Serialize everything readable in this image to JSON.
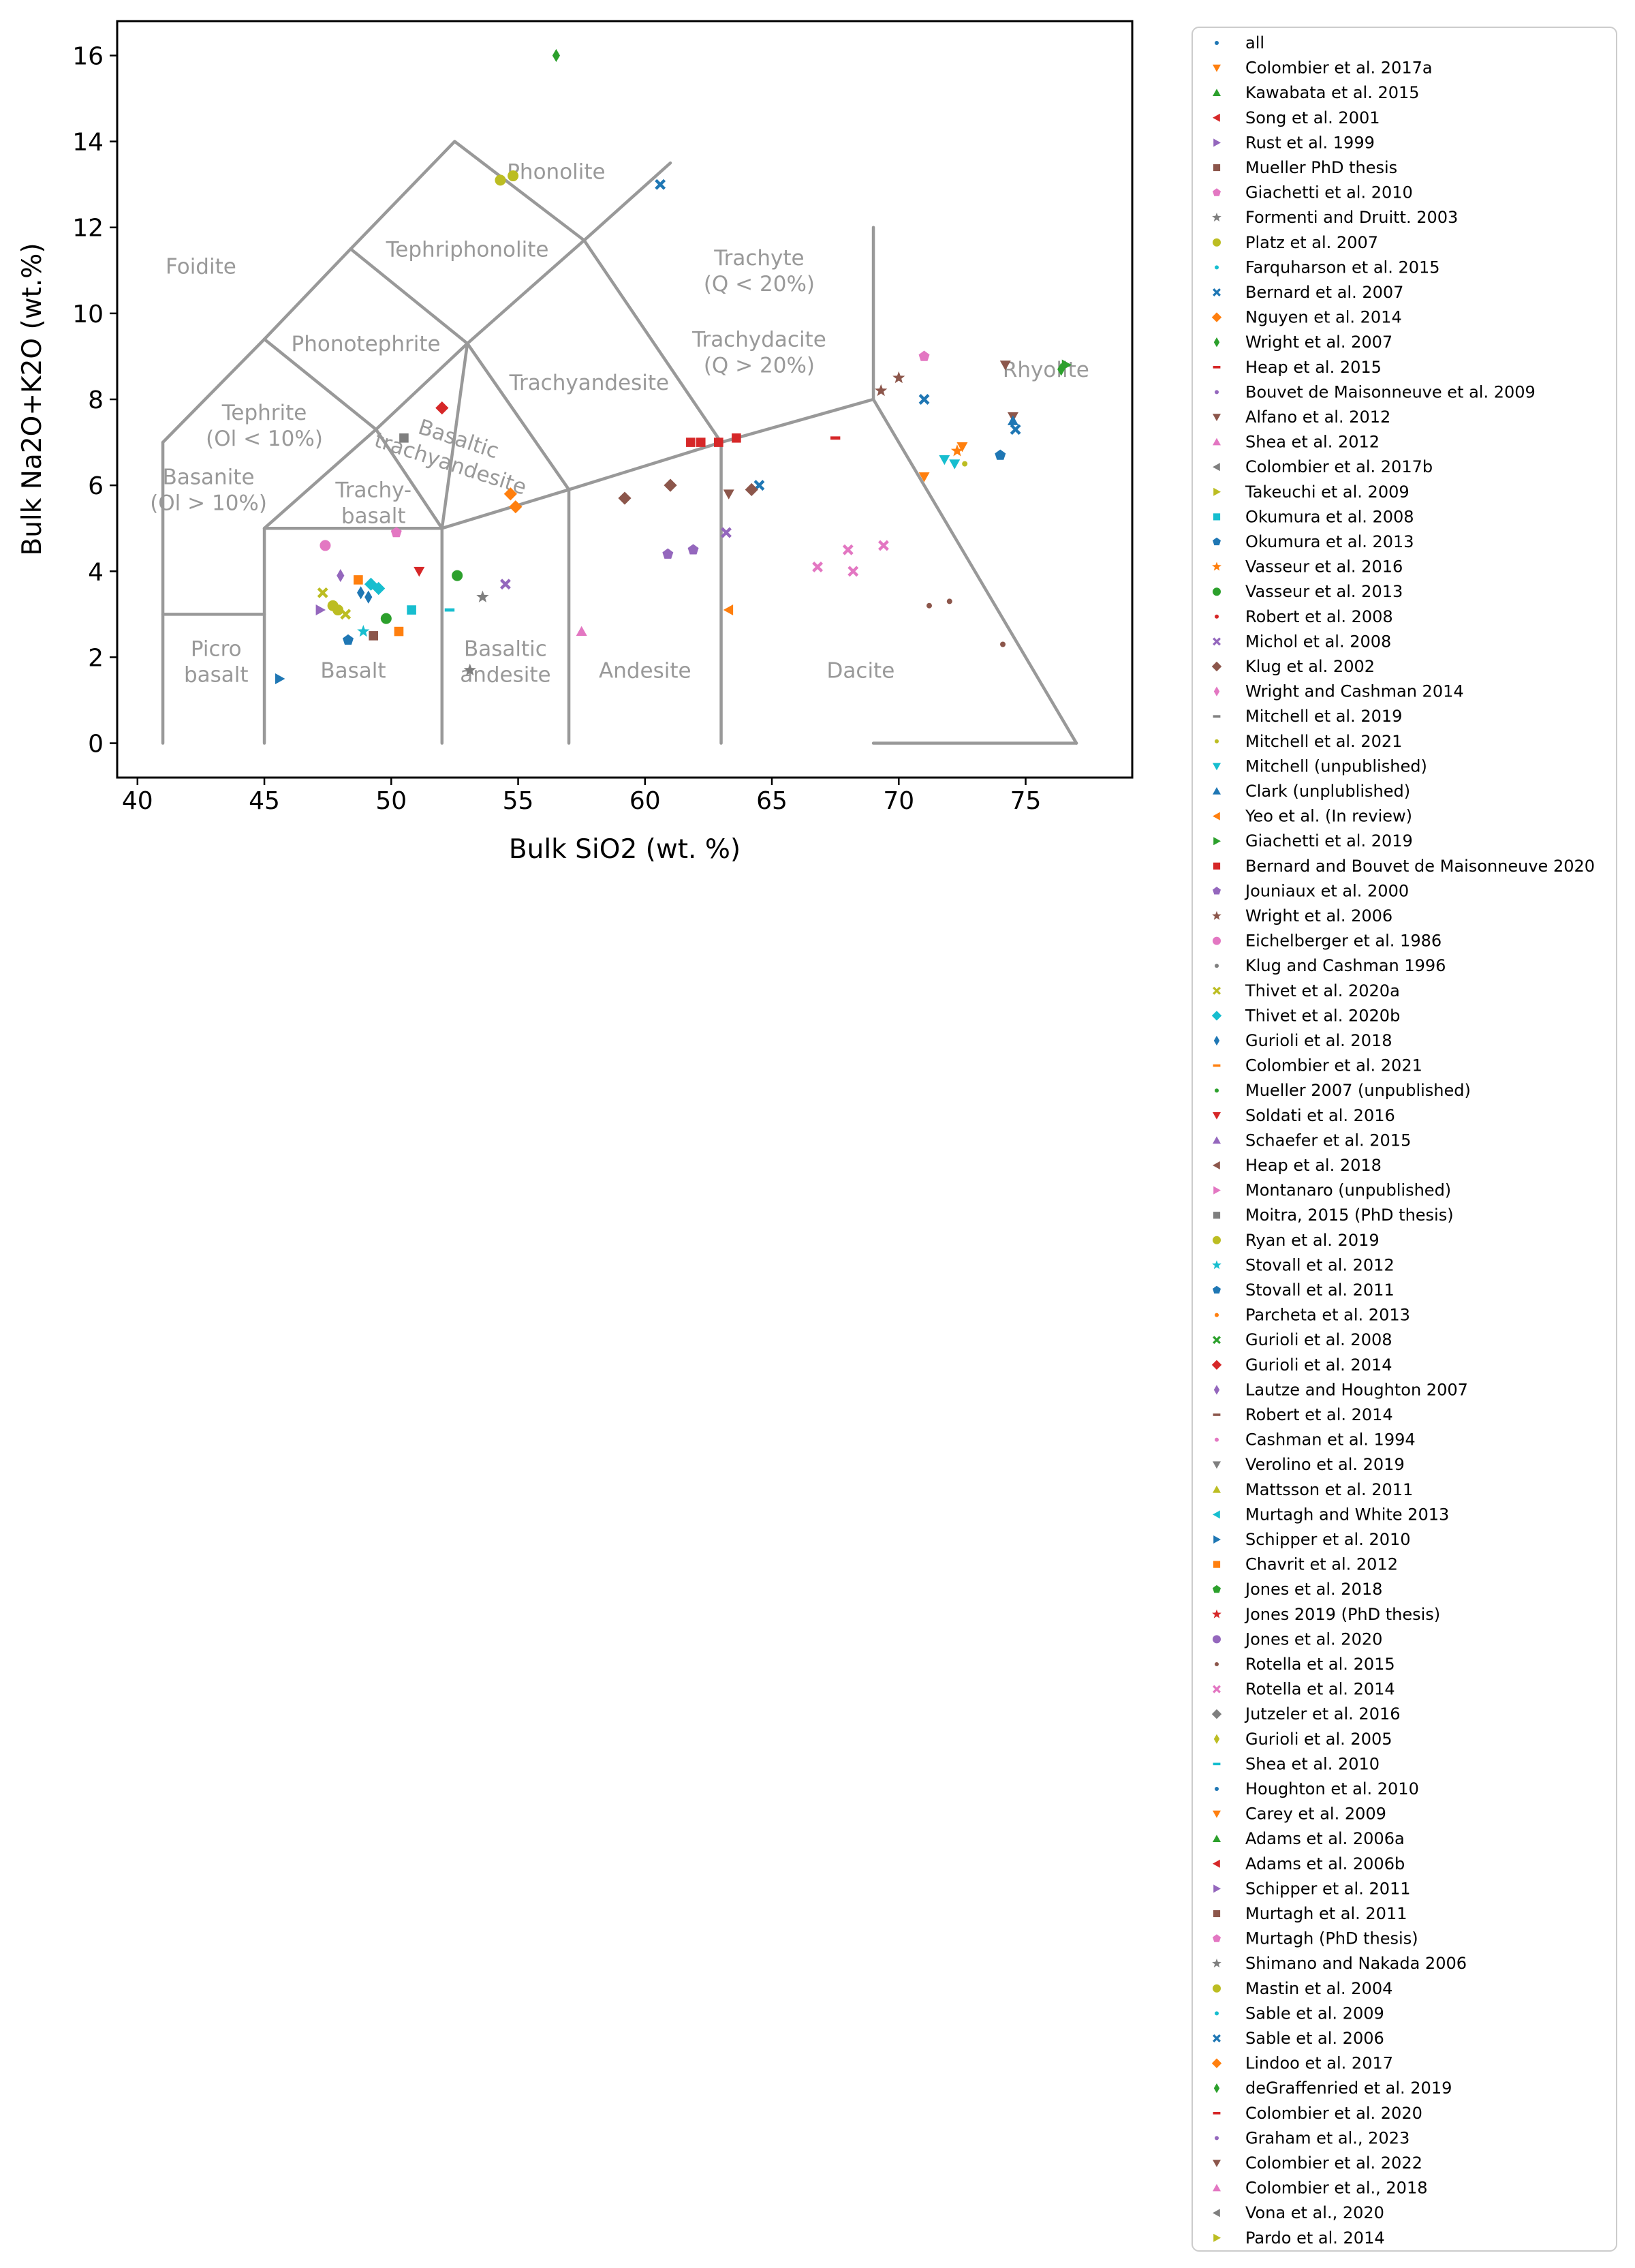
{
  "chart_data": {
    "type": "scatter",
    "title": "",
    "xlabel": "Bulk SiO2 (wt. %)",
    "ylabel": "Bulk Na2O+K2O (wt.%)",
    "xlim": [
      39.2,
      79.2
    ],
    "ylim": [
      -0.8,
      16.8
    ],
    "xticks": [
      40,
      45,
      50,
      55,
      60,
      65,
      70,
      75
    ],
    "yticks": [
      0,
      2,
      4,
      6,
      8,
      10,
      12,
      14,
      16
    ],
    "grid": false,
    "legend_position": "outside-right",
    "tas_field_labels": [
      {
        "lines": [
          "Foidite"
        ],
        "x": 42.5,
        "y": 11.1
      },
      {
        "lines": [
          "Phonolite"
        ],
        "x": 56.5,
        "y": 13.3
      },
      {
        "lines": [
          "Tephriphonolite"
        ],
        "x": 53.0,
        "y": 11.5
      },
      {
        "lines": [
          "Phonotephrite"
        ],
        "x": 49.0,
        "y": 9.3
      },
      {
        "lines": [
          "Trachyandesite"
        ],
        "x": 57.8,
        "y": 8.4
      },
      {
        "lines": [
          "Tephrite",
          "(Ol < 10%)"
        ],
        "x": 45.0,
        "y": 7.4
      },
      {
        "lines": [
          "Basanite",
          "(Ol > 10%)"
        ],
        "x": 42.8,
        "y": 5.9
      },
      {
        "lines": [
          "Basaltic",
          "trachyandesite"
        ],
        "x": 52.5,
        "y": 6.8,
        "rotate": 18
      },
      {
        "lines": [
          "Trachy-",
          "basalt"
        ],
        "x": 49.3,
        "y": 5.6
      },
      {
        "lines": [
          "Trachyte",
          "(Q < 20%)"
        ],
        "x": 64.5,
        "y": 11.0
      },
      {
        "lines": [
          "Trachydacite",
          "(Q > 20%)"
        ],
        "x": 64.5,
        "y": 9.1
      },
      {
        "lines": [
          "Rhyolite"
        ],
        "x": 75.8,
        "y": 8.7
      },
      {
        "lines": [
          "Picro",
          "basalt"
        ],
        "x": 43.1,
        "y": 1.9
      },
      {
        "lines": [
          "Basalt"
        ],
        "x": 48.5,
        "y": 1.7
      },
      {
        "lines": [
          "Basaltic",
          "andesite"
        ],
        "x": 54.5,
        "y": 1.9
      },
      {
        "lines": [
          "Andesite"
        ],
        "x": 60.0,
        "y": 1.7
      },
      {
        "lines": [
          "Dacite"
        ],
        "x": 68.5,
        "y": 1.7
      }
    ],
    "series": [
      {
        "name": "all",
        "color": "#1f77b4",
        "marker": "dot",
        "points": []
      },
      {
        "name": "Colombier et al. 2017a",
        "color": "#ff7f0e",
        "marker": "tri_down",
        "points": [
          [
            71.0,
            6.2
          ],
          [
            72.5,
            6.9
          ]
        ]
      },
      {
        "name": "Kawabata et al. 2015",
        "color": "#2ca02c",
        "marker": "tri_up",
        "points": []
      },
      {
        "name": "Song et al. 2001",
        "color": "#d62728",
        "marker": "tri_left",
        "points": []
      },
      {
        "name": "Rust et al. 1999",
        "color": "#9467bd",
        "marker": "tri_right",
        "points": [
          [
            47.2,
            3.1
          ]
        ]
      },
      {
        "name": "Mueller PhD thesis",
        "color": "#8c564b",
        "marker": "square",
        "points": [
          [
            49.3,
            2.5
          ]
        ]
      },
      {
        "name": "Giachetti et al. 2010",
        "color": "#e377c2",
        "marker": "pentagon",
        "points": [
          [
            71.0,
            9.0
          ]
        ]
      },
      {
        "name": "Formenti and Druitt. 2003",
        "color": "#7f7f7f",
        "marker": "star",
        "points": [
          [
            53.6,
            3.4
          ]
        ]
      },
      {
        "name": "Platz et al. 2007",
        "color": "#bcbd22",
        "marker": "circle",
        "points": [
          [
            47.7,
            3.2
          ],
          [
            47.9,
            3.1
          ]
        ]
      },
      {
        "name": "Farquharson et al. 2015",
        "color": "#17becf",
        "marker": "dot",
        "points": []
      },
      {
        "name": "Bernard et al. 2007",
        "color": "#1f77b4",
        "marker": "x",
        "points": [
          [
            60.6,
            13.0
          ],
          [
            64.5,
            6.0
          ],
          [
            71.0,
            8.0
          ],
          [
            74.6,
            7.3
          ]
        ]
      },
      {
        "name": "Nguyen et al. 2014",
        "color": "#ff7f0e",
        "marker": "diamond",
        "points": [
          [
            54.7,
            5.8
          ],
          [
            54.9,
            5.5
          ]
        ]
      },
      {
        "name": "Wright et al. 2007",
        "color": "#2ca02c",
        "marker": "thin_diamond",
        "points": [
          [
            76.4,
            8.7
          ]
        ]
      },
      {
        "name": "Heap et al. 2015",
        "color": "#d62728",
        "marker": "hline",
        "points": [
          [
            67.5,
            7.1
          ]
        ]
      },
      {
        "name": "Bouvet de Maisonneuve et al. 2009",
        "color": "#9467bd",
        "marker": "dot",
        "points": []
      },
      {
        "name": "Alfano et al. 2012",
        "color": "#8c564b",
        "marker": "tri_down",
        "points": [
          [
            74.2,
            8.8
          ],
          [
            74.5,
            7.6
          ],
          [
            63.3,
            5.8
          ]
        ]
      },
      {
        "name": "Shea et al. 2012",
        "color": "#e377c2",
        "marker": "tri_up",
        "points": [
          [
            57.5,
            2.6
          ]
        ]
      },
      {
        "name": "Colombier et al. 2017b",
        "color": "#7f7f7f",
        "marker": "tri_left",
        "points": []
      },
      {
        "name": "Takeuchi et al. 2009",
        "color": "#bcbd22",
        "marker": "tri_right",
        "points": []
      },
      {
        "name": "Okumura et al. 2008",
        "color": "#17becf",
        "marker": "square",
        "points": [
          [
            50.8,
            3.1
          ]
        ]
      },
      {
        "name": "Okumura et al. 2013",
        "color": "#1f77b4",
        "marker": "pentagon",
        "points": [
          [
            48.3,
            2.4
          ],
          [
            74.0,
            6.7
          ]
        ]
      },
      {
        "name": "Vasseur et al. 2016",
        "color": "#ff7f0e",
        "marker": "star",
        "points": [
          [
            72.3,
            6.8
          ]
        ]
      },
      {
        "name": "Vasseur et al. 2013",
        "color": "#2ca02c",
        "marker": "circle",
        "points": [
          [
            52.6,
            3.9
          ],
          [
            49.8,
            2.9
          ]
        ]
      },
      {
        "name": "Robert et al. 2008",
        "color": "#d62728",
        "marker": "dot",
        "points": []
      },
      {
        "name": "Michol et al. 2008",
        "color": "#9467bd",
        "marker": "x",
        "points": [
          [
            54.5,
            3.7
          ],
          [
            63.2,
            4.9
          ]
        ]
      },
      {
        "name": "Klug et al. 2002",
        "color": "#8c564b",
        "marker": "diamond",
        "points": [
          [
            59.2,
            5.7
          ],
          [
            61.0,
            6.0
          ],
          [
            64.2,
            5.9
          ]
        ]
      },
      {
        "name": "Wright and Cashman 2014",
        "color": "#e377c2",
        "marker": "thin_diamond",
        "points": []
      },
      {
        "name": "Mitchell et al. 2019",
        "color": "#7f7f7f",
        "marker": "hline",
        "points": []
      },
      {
        "name": "Mitchell et al. 2021",
        "color": "#bcbd22",
        "marker": "dot",
        "points": [
          [
            72.6,
            6.5
          ]
        ]
      },
      {
        "name": "Mitchell (unpublished)",
        "color": "#17becf",
        "marker": "tri_down",
        "points": [
          [
            71.8,
            6.6
          ],
          [
            72.2,
            6.5
          ]
        ]
      },
      {
        "name": "Clark (unplublished)",
        "color": "#1f77b4",
        "marker": "tri_up",
        "points": [
          [
            74.5,
            7.5
          ]
        ]
      },
      {
        "name": "Yeo et al. (In review)",
        "color": "#ff7f0e",
        "marker": "tri_left",
        "points": [
          [
            63.3,
            3.1
          ]
        ]
      },
      {
        "name": "Giachetti et al. 2019",
        "color": "#2ca02c",
        "marker": "tri_right",
        "points": [
          [
            76.6,
            8.8
          ]
        ]
      },
      {
        "name": "Bernard and Bouvet de Maisonneuve 2020",
        "color": "#d62728",
        "marker": "square",
        "points": [
          [
            61.8,
            7.0
          ],
          [
            62.2,
            7.0
          ],
          [
            62.9,
            7.0
          ],
          [
            63.6,
            7.1
          ]
        ]
      },
      {
        "name": "Jouniaux et al. 2000",
        "color": "#9467bd",
        "marker": "pentagon",
        "points": [
          [
            60.9,
            4.4
          ],
          [
            61.9,
            4.5
          ]
        ]
      },
      {
        "name": "Wright et al. 2006",
        "color": "#8c564b",
        "marker": "star",
        "points": [
          [
            69.3,
            8.2
          ],
          [
            70.0,
            8.5
          ]
        ]
      },
      {
        "name": "Eichelberger et al. 1986",
        "color": "#e377c2",
        "marker": "circle",
        "points": [
          [
            47.4,
            4.6
          ]
        ]
      },
      {
        "name": "Klug and Cashman 1996",
        "color": "#7f7f7f",
        "marker": "dot",
        "points": []
      },
      {
        "name": "Thivet et al. 2020a",
        "color": "#bcbd22",
        "marker": "x",
        "points": [
          [
            47.3,
            3.5
          ],
          [
            48.2,
            3.0
          ]
        ]
      },
      {
        "name": "Thivet et al. 2020b",
        "color": "#17becf",
        "marker": "diamond",
        "points": [
          [
            49.2,
            3.7
          ],
          [
            49.5,
            3.6
          ]
        ]
      },
      {
        "name": "Gurioli et al. 2018",
        "color": "#1f77b4",
        "marker": "thin_diamond",
        "points": [
          [
            48.8,
            3.5
          ],
          [
            49.1,
            3.4
          ]
        ]
      },
      {
        "name": "Colombier et al. 2021",
        "color": "#ff7f0e",
        "marker": "hline",
        "points": []
      },
      {
        "name": "Mueller 2007 (unpublished)",
        "color": "#2ca02c",
        "marker": "dot",
        "points": []
      },
      {
        "name": "Soldati et al. 2016",
        "color": "#d62728",
        "marker": "tri_down",
        "points": [
          [
            51.1,
            4.0
          ]
        ]
      },
      {
        "name": "Schaefer et al. 2015",
        "color": "#9467bd",
        "marker": "tri_up",
        "points": []
      },
      {
        "name": "Heap et al. 2018",
        "color": "#8c564b",
        "marker": "tri_left",
        "points": []
      },
      {
        "name": "Montanaro (unpublished)",
        "color": "#e377c2",
        "marker": "tri_right",
        "points": []
      },
      {
        "name": "Moitra, 2015 (PhD thesis)",
        "color": "#7f7f7f",
        "marker": "square",
        "points": [
          [
            50.5,
            7.1
          ]
        ]
      },
      {
        "name": "Ryan et al. 2019",
        "color": "#bcbd22",
        "marker": "circle",
        "points": [
          [
            54.3,
            13.1
          ],
          [
            54.8,
            13.2
          ]
        ]
      },
      {
        "name": "Stovall et al. 2012",
        "color": "#17becf",
        "marker": "star",
        "points": [
          [
            48.9,
            2.6
          ]
        ]
      },
      {
        "name": "Stovall et al. 2011",
        "color": "#1f77b4",
        "marker": "pentagon",
        "points": []
      },
      {
        "name": "Parcheta et al. 2013",
        "color": "#ff7f0e",
        "marker": "dot",
        "points": []
      },
      {
        "name": "Gurioli et al. 2008",
        "color": "#2ca02c",
        "marker": "x",
        "points": []
      },
      {
        "name": "Gurioli et al. 2014",
        "color": "#d62728",
        "marker": "diamond",
        "points": [
          [
            52.0,
            7.8
          ]
        ]
      },
      {
        "name": "Lautze and Houghton 2007",
        "color": "#9467bd",
        "marker": "thin_diamond",
        "points": [
          [
            48.0,
            3.9
          ]
        ]
      },
      {
        "name": "Robert et al. 2014",
        "color": "#8c564b",
        "marker": "hline",
        "points": []
      },
      {
        "name": "Cashman et al. 1994",
        "color": "#e377c2",
        "marker": "dot",
        "points": []
      },
      {
        "name": "Verolino et al. 2019",
        "color": "#7f7f7f",
        "marker": "tri_down",
        "points": []
      },
      {
        "name": "Mattsson et al. 2011",
        "color": "#bcbd22",
        "marker": "tri_up",
        "points": []
      },
      {
        "name": "Murtagh and White 2013",
        "color": "#17becf",
        "marker": "tri_left",
        "points": []
      },
      {
        "name": "Schipper et al. 2010",
        "color": "#1f77b4",
        "marker": "tri_right",
        "points": [
          [
            45.6,
            1.5
          ]
        ]
      },
      {
        "name": "Chavrit et al. 2012",
        "color": "#ff7f0e",
        "marker": "square",
        "points": [
          [
            48.7,
            3.8
          ],
          [
            50.3,
            2.6
          ]
        ]
      },
      {
        "name": "Jones et al. 2018",
        "color": "#2ca02c",
        "marker": "pentagon",
        "points": []
      },
      {
        "name": "Jones 2019 (PhD thesis)",
        "color": "#d62728",
        "marker": "star",
        "points": []
      },
      {
        "name": "Jones et al. 2020",
        "color": "#9467bd",
        "marker": "circle",
        "points": []
      },
      {
        "name": "Rotella et al. 2015",
        "color": "#8c564b",
        "marker": "dot",
        "points": [
          [
            71.2,
            3.2
          ],
          [
            72.0,
            3.3
          ],
          [
            74.1,
            2.3
          ]
        ]
      },
      {
        "name": "Rotella et al. 2014",
        "color": "#e377c2",
        "marker": "x",
        "points": [
          [
            68.0,
            4.5
          ],
          [
            68.2,
            4.0
          ],
          [
            69.4,
            4.6
          ],
          [
            66.8,
            4.1
          ]
        ]
      },
      {
        "name": "Jutzeler et al. 2016",
        "color": "#7f7f7f",
        "marker": "diamond",
        "points": []
      },
      {
        "name": "Gurioli et al. 2005",
        "color": "#bcbd22",
        "marker": "thin_diamond",
        "points": []
      },
      {
        "name": "Shea et al. 2010",
        "color": "#17becf",
        "marker": "hline",
        "points": [
          [
            52.3,
            3.1
          ]
        ]
      },
      {
        "name": "Houghton et al. 2010",
        "color": "#1f77b4",
        "marker": "dot",
        "points": []
      },
      {
        "name": "Carey et al. 2009",
        "color": "#ff7f0e",
        "marker": "tri_down",
        "points": []
      },
      {
        "name": "Adams et al. 2006a",
        "color": "#2ca02c",
        "marker": "tri_up",
        "points": []
      },
      {
        "name": "Adams et al. 2006b",
        "color": "#d62728",
        "marker": "tri_left",
        "points": []
      },
      {
        "name": "Schipper et al. 2011",
        "color": "#9467bd",
        "marker": "tri_right",
        "points": []
      },
      {
        "name": "Murtagh et al. 2011",
        "color": "#8c564b",
        "marker": "square",
        "points": []
      },
      {
        "name": "Murtagh (PhD thesis)",
        "color": "#e377c2",
        "marker": "pentagon",
        "points": [
          [
            50.2,
            4.9
          ]
        ]
      },
      {
        "name": "Shimano and Nakada 2006",
        "color": "#7f7f7f",
        "marker": "star",
        "points": [
          [
            53.1,
            1.7
          ]
        ]
      },
      {
        "name": "Mastin et al. 2004",
        "color": "#bcbd22",
        "marker": "circle",
        "points": []
      },
      {
        "name": "Sable et al. 2009",
        "color": "#17becf",
        "marker": "dot",
        "points": []
      },
      {
        "name": "Sable et al. 2006",
        "color": "#1f77b4",
        "marker": "x",
        "points": []
      },
      {
        "name": "Lindoo et al. 2017",
        "color": "#ff7f0e",
        "marker": "diamond",
        "points": []
      },
      {
        "name": "deGraffenried et al. 2019",
        "color": "#2ca02c",
        "marker": "thin_diamond",
        "points": [
          [
            56.5,
            16.0
          ]
        ]
      },
      {
        "name": "Colombier et al. 2020",
        "color": "#d62728",
        "marker": "hline",
        "points": []
      },
      {
        "name": "Graham et al., 2023",
        "color": "#9467bd",
        "marker": "dot",
        "points": []
      },
      {
        "name": "Colombier et al. 2022",
        "color": "#8c564b",
        "marker": "tri_down",
        "points": []
      },
      {
        "name": "Colombier et al., 2018",
        "color": "#e377c2",
        "marker": "tri_up",
        "points": []
      },
      {
        "name": "Vona et al., 2020",
        "color": "#7f7f7f",
        "marker": "tri_left",
        "points": []
      },
      {
        "name": "Pardo et al. 2014",
        "color": "#bcbd22",
        "marker": "tri_right",
        "points": []
      }
    ]
  }
}
